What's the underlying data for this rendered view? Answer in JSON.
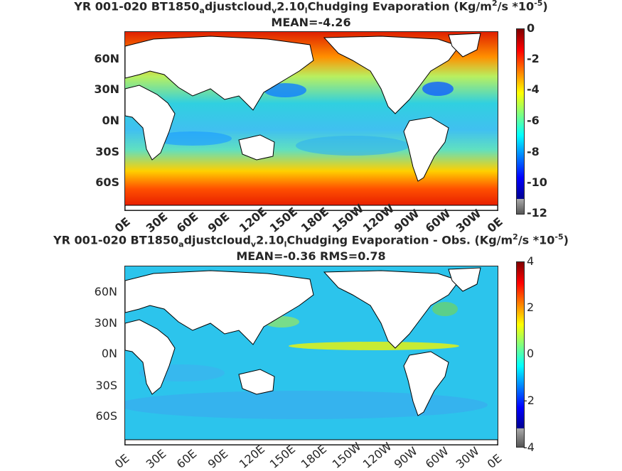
{
  "panels": [
    {
      "title_line1": "YR 001-020 BT1850_adjustcloud_v2.10_lChudging  Evaporation (Kg/m^2/s *10^-5)",
      "title_line2": "MEAN=-4.26",
      "ylabels": [
        "60N",
        "30N",
        "0N",
        "30S",
        "60S"
      ],
      "xlabels": [
        "0E",
        "30E",
        "60E",
        "90E",
        "120E",
        "150E",
        "180E",
        "150W",
        "120W",
        "90W",
        "60W",
        "30W",
        "0E"
      ],
      "colorbar_ticks": [
        "0",
        "-2",
        "-4",
        "-6",
        "-8",
        "-10",
        "-12"
      ],
      "colorbar_range": [
        -12,
        0
      ]
    },
    {
      "title_line1": "YR 001-020 BT1850_adjustcloud_v2.10_lChudging Evaporation - Obs. (Kg/m^2/s *10^-5)",
      "title_line2": "MEAN=-0.36   RMS=0.78",
      "ylabels": [
        "60N",
        "30N",
        "0N",
        "30S",
        "60S"
      ],
      "xlabels": [
        "0E",
        "30E",
        "60E",
        "90E",
        "120E",
        "150E",
        "180E",
        "150W",
        "120W",
        "90W",
        "60W",
        "30W",
        "0E"
      ],
      "colorbar_ticks": [
        "4",
        "2",
        "0",
        "-2",
        "-4"
      ],
      "colorbar_range": [
        -4,
        4
      ]
    }
  ],
  "colors": {
    "jet_top": "#c00000",
    "jet_mid": "#20d0d0",
    "jet_bottom": "#00008f",
    "land": "#ffffff",
    "coastline": "#000000"
  }
}
